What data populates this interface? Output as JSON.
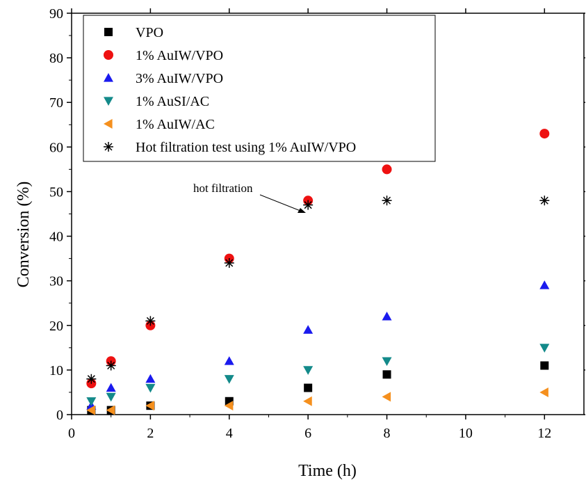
{
  "chart_data": {
    "type": "scatter",
    "title": "",
    "xlabel": "Time (h)",
    "ylabel": "Conversion (%)",
    "xlim": [
      0,
      13
    ],
    "ylim": [
      0,
      90
    ],
    "xticks": [
      "0",
      "2",
      "4",
      "6",
      "8",
      "10",
      "12"
    ],
    "yticks": [
      "0",
      "10",
      "20",
      "30",
      "40",
      "50",
      "60",
      "70",
      "80",
      "90"
    ],
    "grid": false,
    "legend_position": "top-left",
    "series": [
      {
        "name": "VPO",
        "marker": "square",
        "color": "#000000",
        "x": [
          0.5,
          1,
          2,
          4,
          6,
          8,
          12
        ],
        "y": [
          1,
          1,
          2,
          3,
          6,
          9,
          11
        ]
      },
      {
        "name": "1% AuIW/VPO",
        "marker": "circle",
        "color": "#ee1111",
        "x": [
          0.5,
          1,
          2,
          4,
          6,
          8,
          12
        ],
        "y": [
          7,
          12,
          20,
          35,
          48,
          55,
          63
        ]
      },
      {
        "name": "3% AuIW/VPO",
        "marker": "triangle-up",
        "color": "#1a1aee",
        "x": [
          0.5,
          1,
          2,
          4,
          6,
          8,
          12
        ],
        "y": [
          2,
          6,
          8,
          12,
          19,
          22,
          29
        ]
      },
      {
        "name": "1% AuSI/AC",
        "marker": "triangle-down",
        "color": "#138a8a",
        "x": [
          0.5,
          1,
          2,
          4,
          6,
          8,
          12
        ],
        "y": [
          3,
          4,
          6,
          8,
          10,
          12,
          15
        ]
      },
      {
        "name": "1% AuIW/AC",
        "marker": "triangle-left",
        "color": "#f5901e",
        "x": [
          0.5,
          1,
          2,
          4,
          6,
          8,
          12
        ],
        "y": [
          1,
          1,
          2,
          2,
          3,
          4,
          5
        ]
      },
      {
        "name": "Hot filtration test using 1% AuIW/VPO",
        "marker": "asterisk",
        "color": "#000000",
        "x": [
          0.5,
          1,
          2,
          4,
          6,
          8,
          12
        ],
        "y": [
          8,
          11,
          21,
          34,
          47,
          48,
          48
        ]
      }
    ],
    "annotations": [
      {
        "text": "hot filtration",
        "x": 6,
        "y": 48
      }
    ]
  }
}
